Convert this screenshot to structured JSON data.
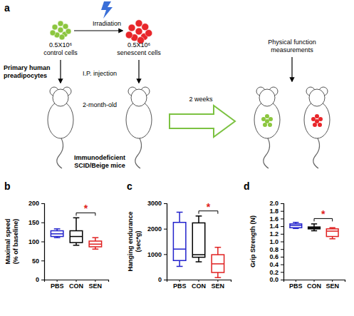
{
  "diagram": {
    "label": "a",
    "source": [
      "Primary human",
      "preadipocytes"
    ],
    "irradiation": "Irradiation",
    "control_cells": [
      "0.5X10⁶",
      "control cells"
    ],
    "senescent_cells": [
      "0.5X10⁶",
      "senescent cells"
    ],
    "injection": "I.P. injection",
    "age": "2-month-old",
    "mice": [
      "Immunodeficient",
      "SCID/Beige mice"
    ],
    "interval": "2 weeks",
    "measurement": [
      "Physical function",
      "measurements"
    ]
  },
  "chart_data": [
    {
      "type": "box",
      "title": "b",
      "y_label": [
        "Maximal speed",
        "(% of baseline)"
      ],
      "categories": [
        "PBS",
        "CON",
        "SEN"
      ],
      "colors": [
        "#2222cc",
        "#000000",
        "#e02020"
      ],
      "values": [
        {
          "min": 110,
          "q1": 113,
          "median": 120,
          "q3": 128,
          "max": 133
        },
        {
          "min": 90,
          "q1": 97,
          "median": 113,
          "q3": 128,
          "max": 162
        },
        {
          "min": 80,
          "q1": 86,
          "median": 93,
          "q3": 101,
          "max": 110
        }
      ],
      "ylim": [
        0,
        200
      ],
      "yticks": [
        0,
        50,
        100,
        150,
        200
      ],
      "annotations": [
        {
          "text": "*",
          "between": [
            "CON",
            "SEN"
          ],
          "y": 175
        }
      ]
    },
    {
      "type": "box",
      "title": "c",
      "y_label": [
        "Hanging endurance",
        "(sec*g)"
      ],
      "categories": [
        "PBS",
        "CON",
        "SEN"
      ],
      "colors": [
        "#2222cc",
        "#000000",
        "#e02020"
      ],
      "values": [
        {
          "min": 520,
          "q1": 750,
          "median": 1200,
          "q3": 2250,
          "max": 2650
        },
        {
          "min": 700,
          "q1": 880,
          "median": 980,
          "q3": 2230,
          "max": 2500
        },
        {
          "min": 80,
          "q1": 280,
          "median": 620,
          "q3": 980,
          "max": 1270
        }
      ],
      "ylim": [
        0,
        3000
      ],
      "yticks": [
        0,
        1000,
        2000,
        3000
      ],
      "annotations": [
        {
          "text": "*",
          "between": [
            "CON",
            "SEN"
          ],
          "y": 2700
        }
      ]
    },
    {
      "type": "box",
      "title": "d",
      "y_label": [
        "Grip Strength (N)"
      ],
      "categories": [
        "PBS",
        "CON",
        "SEN"
      ],
      "colors": [
        "#2222cc",
        "#000000",
        "#e02020"
      ],
      "values": [
        {
          "min": 1.34,
          "q1": 1.36,
          "median": 1.42,
          "q3": 1.46,
          "max": 1.5
        },
        {
          "min": 1.28,
          "q1": 1.33,
          "median": 1.35,
          "q3": 1.38,
          "max": 1.46
        },
        {
          "min": 1.07,
          "q1": 1.13,
          "median": 1.27,
          "q3": 1.33,
          "max": 1.36
        }
      ],
      "ylim": [
        0,
        2
      ],
      "yticks": [
        {
          "value": 0,
          "label": "0.0"
        },
        0.2,
        0.4,
        0.6,
        0.8,
        {
          "value": 1,
          "label": "1.0"
        },
        1.2,
        1.4,
        1.6,
        1.8,
        {
          "value": 2,
          "label": "2.0"
        }
      ],
      "annotations": [
        {
          "text": "*",
          "between": [
            "CON",
            "SEN"
          ],
          "y": 1.6
        }
      ]
    }
  ]
}
